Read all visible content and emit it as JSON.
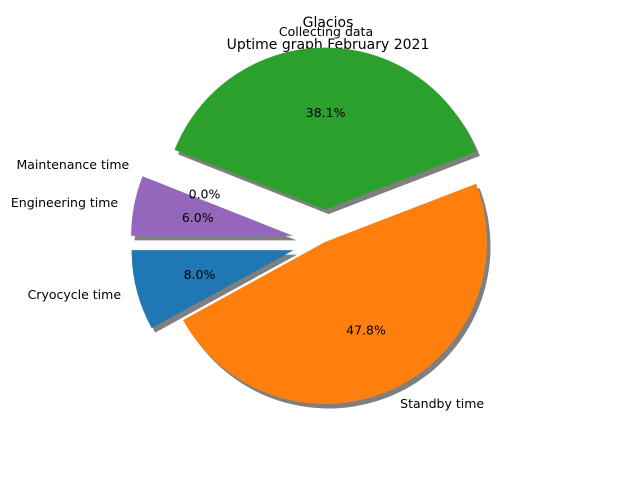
{
  "chart_data": {
    "type": "pie",
    "title": "Glacios",
    "subtitle": "Uptime graph February 2021",
    "slices": [
      {
        "label": "Cryocycle time",
        "value": 8.0,
        "pct_label": "8.0%",
        "color": "#1f77b4",
        "exploded": true
      },
      {
        "label": "Standby time",
        "value": 47.8,
        "pct_label": "47.8%",
        "color": "#ff7f0e",
        "exploded": false
      },
      {
        "label": "Collecting data",
        "value": 38.1,
        "pct_label": "38.1%",
        "color": "#2ca02c",
        "exploded": true
      },
      {
        "label": "Maintenance time",
        "value": 0.0,
        "pct_label": "0.0%",
        "color": "#d62728",
        "exploded": true
      },
      {
        "label": "Engineering time",
        "value": 6.0,
        "pct_label": "6.0%",
        "color": "#9467bd",
        "exploded": true
      }
    ],
    "start_angle_deg": 180,
    "shadow": true
  }
}
